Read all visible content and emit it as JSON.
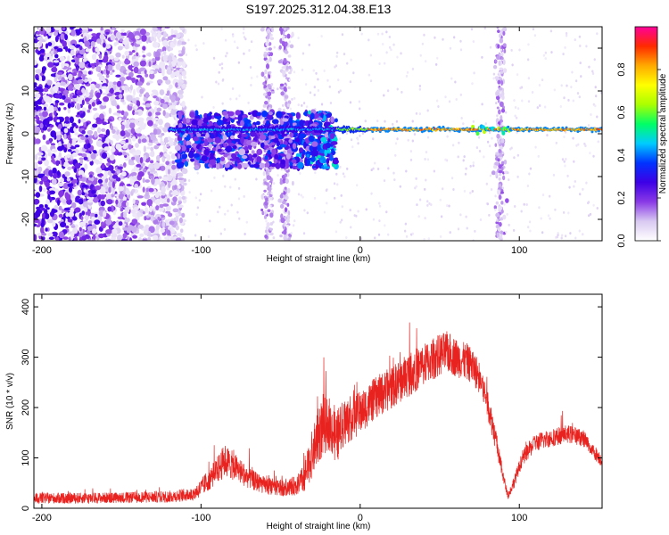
{
  "title": "S197.2025.312.04.38.E13",
  "chart_data": [
    {
      "type": "heatmap",
      "xlabel": "Height of straight line (km)",
      "ylabel": "Frequency (Hz)",
      "xlim": [
        -205,
        152
      ],
      "ylim": [
        -25,
        25
      ],
      "xticks": [
        -200,
        -100,
        0,
        100
      ],
      "yticks": [
        -20,
        -10,
        0,
        10,
        20
      ],
      "colorbar": {
        "label": "Normalized spectral amplitude",
        "range": [
          0,
          1
        ],
        "ticks": [
          0.0,
          0.2,
          0.4,
          0.6,
          0.8
        ],
        "colormap": [
          "#ffffff",
          "#d9c9f2",
          "#8a3ae6",
          "#3d00e6",
          "#0033ff",
          "#00ccff",
          "#00ff66",
          "#aaff00",
          "#ffff00",
          "#ffaa00",
          "#ff2a00",
          "#ff0099"
        ]
      },
      "features": {
        "carrier_line": {
          "from_x": -120,
          "to_x": 152,
          "freq_hz": 1.0,
          "peak_amplitude": 0.85
        },
        "noise_region": {
          "from_x": -205,
          "to_x": -110,
          "level": 0.25
        },
        "transition_band": {
          "from_x": -115,
          "to_x": -15,
          "freq_span_hz": [
            -8,
            5
          ],
          "level": 0.3
        },
        "vertical_streaks_x": [
          -58,
          -47,
          88
        ]
      }
    },
    {
      "type": "line",
      "xlabel": "Height of straight line (km)",
      "ylabel": "SNR (10 * v/v)",
      "xlim": [
        -205,
        152
      ],
      "ylim": [
        0,
        425
      ],
      "xticks": [
        -200,
        -100,
        0,
        100
      ],
      "yticks": [
        0,
        100,
        200,
        300,
        400
      ],
      "color": "#e8221e",
      "envelope": {
        "x": [
          -205,
          -180,
          -150,
          -120,
          -105,
          -100,
          -90,
          -85,
          -78,
          -70,
          -60,
          -50,
          -40,
          -35,
          -30,
          -25,
          -20,
          -15,
          -10,
          -5,
          0,
          10,
          20,
          30,
          40,
          50,
          55,
          60,
          70,
          75,
          80,
          85,
          90,
          93,
          97,
          102,
          110,
          120,
          130,
          140,
          146,
          152
        ],
        "mean": [
          20,
          20,
          21,
          23,
          28,
          40,
          75,
          95,
          80,
          60,
          45,
          40,
          45,
          60,
          110,
          155,
          170,
          140,
          170,
          180,
          190,
          220,
          240,
          265,
          285,
          305,
          310,
          300,
          285,
          260,
          210,
          140,
          60,
          25,
          55,
          100,
          130,
          140,
          148,
          140,
          115,
          95
        ],
        "spread": [
          18,
          18,
          18,
          20,
          22,
          30,
          45,
          55,
          45,
          35,
          28,
          28,
          32,
          50,
          80,
          100,
          90,
          90,
          80,
          75,
          70,
          70,
          70,
          75,
          70,
          70,
          70,
          65,
          60,
          55,
          50,
          40,
          20,
          12,
          20,
          25,
          30,
          30,
          30,
          28,
          25,
          22
        ]
      }
    }
  ]
}
